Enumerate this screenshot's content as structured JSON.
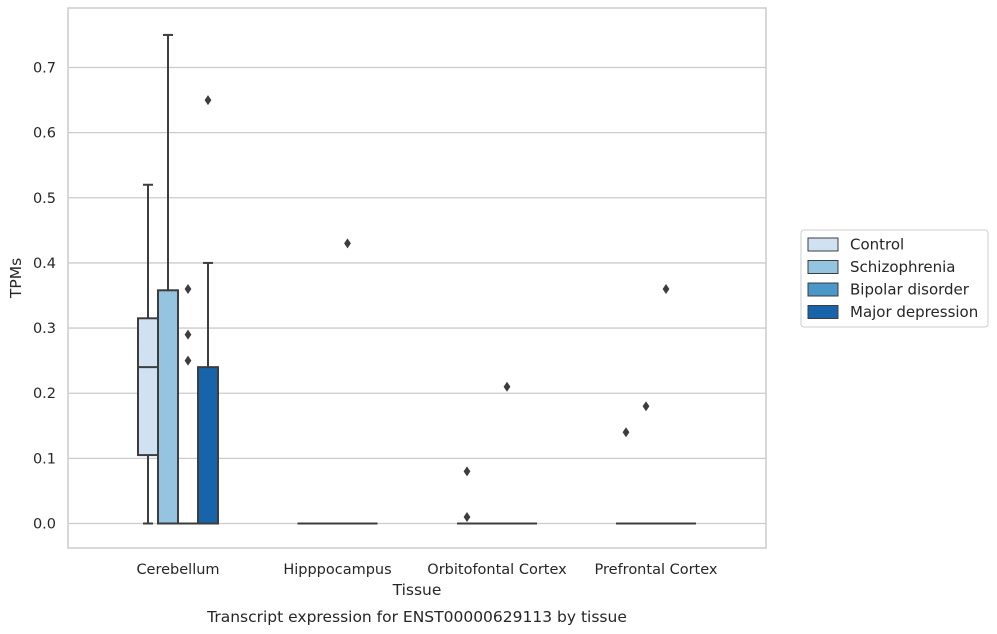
{
  "chart_data": {
    "type": "box",
    "title": "",
    "caption": "Transcript expression for ENST00000629113 by tissue",
    "xlabel": "Tissue",
    "ylabel": "TPMs",
    "ylim": [
      -0.035,
      0.79
    ],
    "yticks": [
      "0.0",
      "0.1",
      "0.2",
      "0.3",
      "0.4",
      "0.5",
      "0.6",
      "0.7"
    ],
    "grid": true,
    "legend_position": "right",
    "categories": [
      "Cerebellum",
      "Hipppocampus",
      "Orbitofontal Cortex",
      "Prefrontal Cortex"
    ],
    "series": [
      {
        "name": "Control",
        "color": "#d0e1f2",
        "boxes": [
          {
            "q1": 0.105,
            "median": 0.24,
            "q3": 0.315,
            "whisker_low": 0.0,
            "whisker_high": 0.52,
            "outliers": []
          },
          {
            "q1": 0.0,
            "median": 0.0,
            "q3": 0.0,
            "whisker_low": 0.0,
            "whisker_high": 0.0,
            "outliers": []
          },
          {
            "q1": 0.0,
            "median": 0.0,
            "q3": 0.0,
            "whisker_low": 0.0,
            "whisker_high": 0.0,
            "outliers": [
              0.08,
              0.01
            ]
          },
          {
            "q1": 0.0,
            "median": 0.0,
            "q3": 0.0,
            "whisker_low": 0.0,
            "whisker_high": 0.0,
            "outliers": [
              0.14
            ]
          }
        ]
      },
      {
        "name": "Schizophrenia",
        "color": "#94c4df",
        "boxes": [
          {
            "q1": 0.0,
            "median": 0.0,
            "q3": 0.358,
            "whisker_low": 0.0,
            "whisker_high": 0.75,
            "outliers": []
          },
          {
            "q1": 0.0,
            "median": 0.0,
            "q3": 0.0,
            "whisker_low": 0.0,
            "whisker_high": 0.0,
            "outliers": []
          },
          {
            "q1": 0.0,
            "median": 0.0,
            "q3": 0.0,
            "whisker_low": 0.0,
            "whisker_high": 0.0,
            "outliers": []
          },
          {
            "q1": 0.0,
            "median": 0.0,
            "q3": 0.0,
            "whisker_low": 0.0,
            "whisker_high": 0.0,
            "outliers": [
              0.18
            ]
          }
        ]
      },
      {
        "name": "Bipolar disorder",
        "color": "#4a98c9",
        "boxes": [
          {
            "q1": 0.0,
            "median": 0.0,
            "q3": 0.0,
            "whisker_low": 0.0,
            "whisker_high": 0.0,
            "outliers": [
              0.36,
              0.29,
              0.25
            ]
          },
          {
            "q1": 0.0,
            "median": 0.0,
            "q3": 0.0,
            "whisker_low": 0.0,
            "whisker_high": 0.0,
            "outliers": [
              0.43
            ]
          },
          {
            "q1": 0.0,
            "median": 0.0,
            "q3": 0.0,
            "whisker_low": 0.0,
            "whisker_high": 0.0,
            "outliers": [
              0.21
            ]
          },
          {
            "q1": 0.0,
            "median": 0.0,
            "q3": 0.0,
            "whisker_low": 0.0,
            "whisker_high": 0.0,
            "outliers": [
              0.36
            ]
          }
        ]
      },
      {
        "name": "Major depression",
        "color": "#1764ab",
        "boxes": [
          {
            "q1": 0.0,
            "median": 0.0,
            "q3": 0.24,
            "whisker_low": 0.0,
            "whisker_high": 0.4,
            "outliers": [
              0.65
            ]
          },
          {
            "q1": 0.0,
            "median": 0.0,
            "q3": 0.0,
            "whisker_low": 0.0,
            "whisker_high": 0.0,
            "outliers": []
          },
          {
            "q1": 0.0,
            "median": 0.0,
            "q3": 0.0,
            "whisker_low": 0.0,
            "whisker_high": 0.0,
            "outliers": []
          },
          {
            "q1": 0.0,
            "median": 0.0,
            "q3": 0.0,
            "whisker_low": 0.0,
            "whisker_high": 0.0,
            "outliers": []
          }
        ]
      }
    ]
  }
}
